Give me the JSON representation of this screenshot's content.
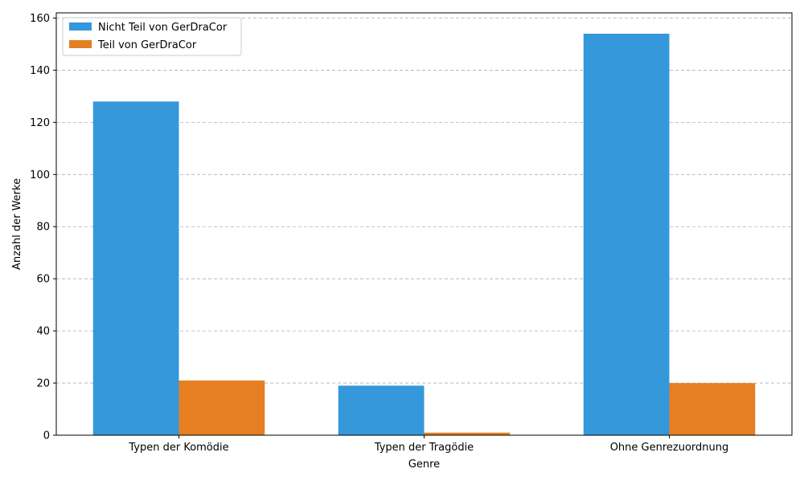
{
  "chart_data": {
    "type": "bar",
    "title": "",
    "xlabel": "Genre",
    "ylabel": "Anzahl der Werke",
    "categories": [
      "Typen der Komödie",
      "Typen der Tragödie",
      "Ohne Genrezuordnung"
    ],
    "series": [
      {
        "name": "Nicht Teil von GerDraCor",
        "values": [
          128,
          19,
          154
        ],
        "color": "#3498db"
      },
      {
        "name": "Teil von GerDraCor",
        "values": [
          21,
          1,
          20
        ],
        "color": "#e67e22"
      }
    ],
    "ylim": [
      0,
      162
    ],
    "yticks": [
      0,
      20,
      40,
      60,
      80,
      100,
      120,
      140,
      160
    ],
    "grid": "y-dashed",
    "legend": "top-left"
  }
}
